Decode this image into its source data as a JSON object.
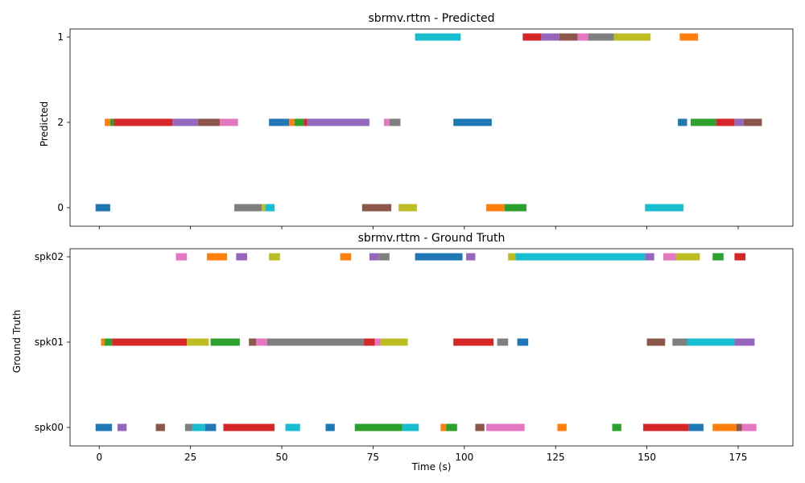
{
  "colors": [
    "#1f77b4",
    "#ff7f0e",
    "#2ca02c",
    "#d62728",
    "#9467bd",
    "#8c564b",
    "#e377c2",
    "#7f7f7f",
    "#bcbd22",
    "#17becf"
  ],
  "chart_data": [
    {
      "type": "timeline",
      "title": "sbrmv.rttm - Predicted",
      "ylabel": "Predicted",
      "xlabel": "",
      "xlim": [
        -8,
        190
      ],
      "x_ticks": [
        0,
        25,
        50,
        75,
        100,
        125,
        150,
        175
      ],
      "show_x_tick_labels": false,
      "rows": [
        {
          "label": "1",
          "segments": [
            [
              86.5,
              99.0,
              9
            ],
            [
              116,
              121,
              3
            ],
            [
              121,
              126,
              4
            ],
            [
              126,
              131,
              5
            ],
            [
              131,
              134,
              6
            ],
            [
              134,
              141,
              7
            ],
            [
              141,
              151,
              8
            ],
            [
              159,
              164,
              1
            ]
          ]
        },
        {
          "label": "2",
          "segments": [
            [
              1.5,
              3,
              1
            ],
            [
              3,
              4,
              2
            ],
            [
              4,
              20,
              3
            ],
            [
              20,
              27,
              4
            ],
            [
              27,
              33,
              5
            ],
            [
              33,
              38,
              6
            ],
            [
              46.5,
              52,
              0
            ],
            [
              52,
              53.5,
              1
            ],
            [
              53.5,
              56,
              2
            ],
            [
              56,
              57,
              3
            ],
            [
              57,
              74,
              4
            ],
            [
              78,
              79.5,
              6
            ],
            [
              79.5,
              82.5,
              7
            ],
            [
              97,
              107.5,
              0
            ],
            [
              158.5,
              161,
              0
            ],
            [
              162,
              169,
              2
            ],
            [
              169,
              174,
              3
            ],
            [
              174,
              176.5,
              4
            ],
            [
              176.5,
              181.5,
              5
            ]
          ]
        },
        {
          "label": "0",
          "segments": [
            [
              -1,
              3,
              0
            ],
            [
              37,
              44.5,
              7
            ],
            [
              44.5,
              45.5,
              8
            ],
            [
              45.5,
              48,
              9
            ],
            [
              72,
              80,
              5
            ],
            [
              82,
              87,
              8
            ],
            [
              106,
              111,
              1
            ],
            [
              111,
              117,
              2
            ],
            [
              149.5,
              160,
              9
            ]
          ]
        }
      ]
    },
    {
      "type": "timeline",
      "title": "sbrmv.rttm - Ground Truth",
      "ylabel": "Ground Truth",
      "xlabel": "Time (s)",
      "xlim": [
        -8,
        190
      ],
      "x_ticks": [
        0,
        25,
        50,
        75,
        100,
        125,
        150,
        175
      ],
      "show_x_tick_labels": true,
      "rows": [
        {
          "label": "spk02",
          "segments": [
            [
              21,
              24,
              6
            ],
            [
              29.5,
              35,
              1
            ],
            [
              37.5,
              40.5,
              4
            ],
            [
              46.5,
              49.5,
              8
            ],
            [
              66,
              69,
              1
            ],
            [
              74,
              76.5,
              4
            ],
            [
              76.5,
              79.5,
              7
            ],
            [
              86.5,
              99.5,
              0
            ],
            [
              100.5,
              103,
              4
            ],
            [
              112,
              114,
              8
            ],
            [
              114,
              149.5,
              9
            ],
            [
              149.5,
              152,
              4
            ],
            [
              154.5,
              158,
              6
            ],
            [
              158,
              164.5,
              8
            ],
            [
              168,
              171,
              2
            ],
            [
              174,
              177,
              3
            ]
          ]
        },
        {
          "label": "spk01",
          "segments": [
            [
              0.5,
              1.5,
              1
            ],
            [
              1.5,
              3.5,
              2
            ],
            [
              3.5,
              24,
              3
            ],
            [
              24,
              30,
              8
            ],
            [
              30.5,
              38.5,
              2
            ],
            [
              41,
              43,
              5
            ],
            [
              43,
              46,
              6
            ],
            [
              46,
              72.5,
              7
            ],
            [
              72.5,
              75.5,
              3
            ],
            [
              75.5,
              77,
              6
            ],
            [
              77,
              84.5,
              8
            ],
            [
              97,
              108,
              3
            ],
            [
              109,
              112,
              7
            ],
            [
              114.5,
              117.5,
              0
            ],
            [
              150,
              155,
              5
            ],
            [
              157,
              161,
              7
            ],
            [
              161,
              174,
              9
            ],
            [
              174,
              179.5,
              4
            ]
          ]
        },
        {
          "label": "spk00",
          "segments": [
            [
              -1,
              3.5,
              0
            ],
            [
              5,
              7.5,
              4
            ],
            [
              15.5,
              18,
              5
            ],
            [
              23.5,
              25.5,
              7
            ],
            [
              25.5,
              29,
              9
            ],
            [
              29,
              32,
              0
            ],
            [
              34,
              48,
              3
            ],
            [
              51,
              55,
              9
            ],
            [
              62,
              64.5,
              0
            ],
            [
              70,
              83,
              2
            ],
            [
              83,
              87.5,
              9
            ],
            [
              93.5,
              95,
              1
            ],
            [
              95,
              98,
              2
            ],
            [
              103,
              105.5,
              5
            ],
            [
              106,
              116.5,
              6
            ],
            [
              125.5,
              128,
              1
            ],
            [
              140.5,
              143,
              2
            ],
            [
              149,
              161.5,
              3
            ],
            [
              161.5,
              165.5,
              0
            ],
            [
              168,
              174.5,
              1
            ],
            [
              174.5,
              176,
              5
            ],
            [
              176,
              180,
              6
            ]
          ]
        }
      ]
    }
  ]
}
